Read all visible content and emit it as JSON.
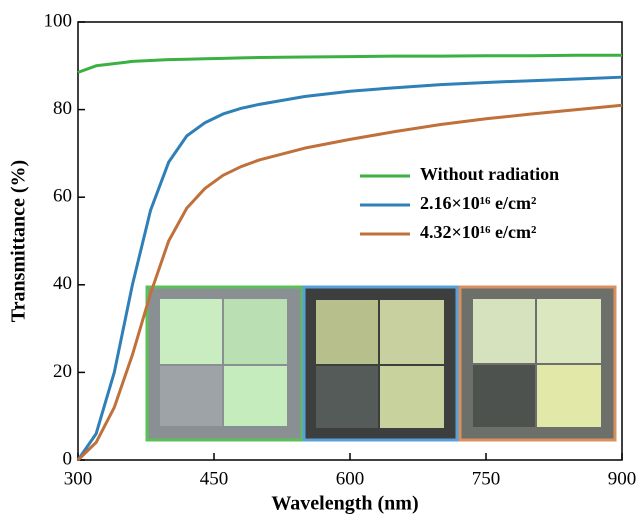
{
  "chart_data": {
    "type": "line",
    "x_label": "Wavelength (nm)",
    "y_label": "Transmittance (%)",
    "x": [
      300,
      320,
      340,
      360,
      380,
      400,
      420,
      440,
      460,
      480,
      500,
      550,
      600,
      650,
      700,
      750,
      800,
      850,
      900
    ],
    "series": [
      {
        "name": "Without radiation",
        "color": "#3cb043",
        "values": [
          88.5,
          90,
          90.5,
          91,
          91.2,
          91.4,
          91.5,
          91.6,
          91.7,
          91.8,
          91.9,
          92,
          92.1,
          92.2,
          92.2,
          92.3,
          92.3,
          92.4,
          92.4
        ]
      },
      {
        "name": "2.16×10¹⁶ e/cm²",
        "color": "#2f7fb8",
        "values": [
          0,
          6,
          20,
          40,
          57,
          68,
          74,
          77,
          79,
          80.3,
          81.2,
          83,
          84.2,
          85,
          85.7,
          86.2,
          86.6,
          87,
          87.4
        ]
      },
      {
        "name": "4.32×10¹⁶ e/cm²",
        "color": "#c0703a",
        "values": [
          0,
          4,
          12,
          24,
          38,
          50,
          57.5,
          62,
          65,
          67,
          68.5,
          71.2,
          73.2,
          75,
          76.6,
          77.9,
          79,
          80,
          81
        ]
      }
    ],
    "xlim": [
      300,
      900
    ],
    "xticks": [
      300,
      450,
      600,
      750,
      900
    ],
    "ylim": [
      0,
      100
    ],
    "yticks": [
      0,
      20,
      40,
      60,
      80,
      100
    ],
    "legend": "upper-right"
  }
}
